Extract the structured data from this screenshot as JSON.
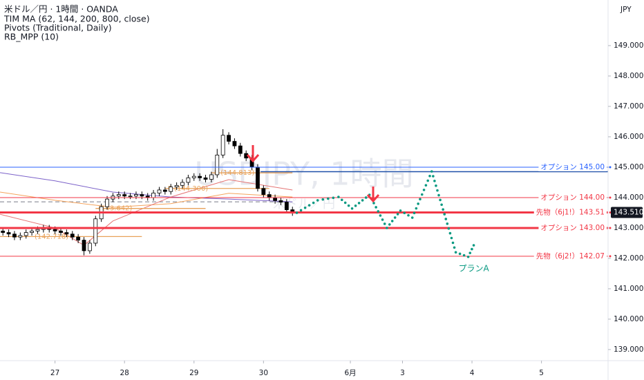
{
  "chart_data": {
    "type": "candlestick",
    "header": [
      "米ドル／円 · 1時間 · OANDA",
      "TIM MA (62, 144, 200, 800, close)",
      "Pivots (Traditional, Daily)",
      "RB_MPP (10)"
    ],
    "currency": "JPY",
    "watermark": "USDJPY, 1時間",
    "watermark_sub": "米ドル／円",
    "xlim": [
      -19,
      191
    ],
    "xticks": [
      {
        "value": 0,
        "label": "27"
      },
      {
        "value": 24,
        "label": "28"
      },
      {
        "value": 48,
        "label": "29"
      },
      {
        "value": 72,
        "label": "30"
      },
      {
        "value": 102,
        "label": "6月"
      },
      {
        "value": 120,
        "label": "3"
      },
      {
        "value": 144,
        "label": "4"
      },
      {
        "value": 168,
        "label": "5"
      }
    ],
    "ylim": [
      138.68,
      150.5
    ],
    "yticks": [
      {
        "value": 139,
        "label": "139.000"
      },
      {
        "value": 140,
        "label": "140.000"
      },
      {
        "value": 141,
        "label": "141.000"
      },
      {
        "value": 142,
        "label": "142.000"
      },
      {
        "value": 143,
        "label": "143.000"
      },
      {
        "value": 144,
        "label": "144.000"
      },
      {
        "value": 145,
        "label": "145.000"
      },
      {
        "value": 146,
        "label": "146.000"
      },
      {
        "value": 147,
        "label": "147.000"
      },
      {
        "value": 148,
        "label": "148.000"
      },
      {
        "value": 149,
        "label": "149.000"
      }
    ],
    "price_label": {
      "value": 143.51,
      "label": "143.510"
    },
    "up_color": "#ffffff",
    "down_color": "#000000",
    "x": [
      -18,
      -16,
      -14,
      -12,
      -10,
      -8,
      -6,
      -4,
      -2,
      0,
      2,
      4,
      6,
      8,
      10,
      12,
      14,
      16,
      18,
      20,
      22,
      24,
      26,
      28,
      30,
      32,
      34,
      36,
      38,
      40,
      42,
      44,
      46,
      48,
      50,
      52,
      54,
      56,
      58,
      60,
      62,
      64,
      66,
      68,
      70,
      72,
      74,
      76,
      78,
      80,
      82
    ],
    "open": [
      142.9,
      142.85,
      142.8,
      142.7,
      142.75,
      142.85,
      142.9,
      142.95,
      143.0,
      142.95,
      142.9,
      142.85,
      142.8,
      142.7,
      142.6,
      142.25,
      142.5,
      143.3,
      143.7,
      143.95,
      144.05,
      144.1,
      144.05,
      144.05,
      144.1,
      144.05,
      144.0,
      144.15,
      144.25,
      144.2,
      144.35,
      144.4,
      144.5,
      144.65,
      144.7,
      144.65,
      144.6,
      144.75,
      145.4,
      146.05,
      145.85,
      145.7,
      145.45,
      145.3,
      145.0,
      144.3,
      144.1,
      144.0,
      143.9,
      143.85,
      143.6
    ],
    "high": [
      143.0,
      142.95,
      142.9,
      142.85,
      142.95,
      143.0,
      143.05,
      143.1,
      143.1,
      143.05,
      143.0,
      142.95,
      142.9,
      142.8,
      142.7,
      142.6,
      143.4,
      143.8,
      144.05,
      144.15,
      144.2,
      144.2,
      144.15,
      144.2,
      144.2,
      144.15,
      144.25,
      144.35,
      144.35,
      144.45,
      144.5,
      144.6,
      144.75,
      144.8,
      144.8,
      144.75,
      144.85,
      145.6,
      146.25,
      146.15,
      145.95,
      145.8,
      145.55,
      145.4,
      145.1,
      144.4,
      144.2,
      144.1,
      144.0,
      143.95,
      143.7
    ],
    "low": [
      142.75,
      142.7,
      142.6,
      142.6,
      142.65,
      142.75,
      142.8,
      142.85,
      142.85,
      142.8,
      142.75,
      142.7,
      142.6,
      142.5,
      142.1,
      142.15,
      142.4,
      143.2,
      143.6,
      143.85,
      143.95,
      143.95,
      143.95,
      143.95,
      143.95,
      143.9,
      143.9,
      144.05,
      144.1,
      144.1,
      144.25,
      144.3,
      144.4,
      144.55,
      144.55,
      144.5,
      144.5,
      144.65,
      145.3,
      145.75,
      145.6,
      145.35,
      145.2,
      144.9,
      144.2,
      144.0,
      143.9,
      143.8,
      143.75,
      143.5,
      143.4
    ],
    "close": [
      142.85,
      142.8,
      142.7,
      142.75,
      142.85,
      142.9,
      142.95,
      143.0,
      142.95,
      142.9,
      142.85,
      142.8,
      142.7,
      142.6,
      142.25,
      142.5,
      143.3,
      143.7,
      143.95,
      144.05,
      144.1,
      144.05,
      144.05,
      144.1,
      144.05,
      144.0,
      144.15,
      144.25,
      144.2,
      144.35,
      144.4,
      144.5,
      144.65,
      144.7,
      144.65,
      144.6,
      144.75,
      145.4,
      146.05,
      145.85,
      145.7,
      145.45,
      145.3,
      145.0,
      144.3,
      144.1,
      144.0,
      143.9,
      143.85,
      143.6,
      143.5
    ],
    "moving_averages": [
      {
        "color": "#7b61c9",
        "x": [
          -19,
          0,
          20,
          40,
          60,
          82
        ],
        "values": [
          144.82,
          144.55,
          144.18,
          144.02,
          143.95,
          143.86
        ]
      },
      {
        "color": "#f5a35c",
        "x": [
          -19,
          0,
          20,
          40,
          60,
          82
        ],
        "values": [
          144.18,
          143.91,
          143.68,
          143.8,
          144.14,
          144.02
        ]
      },
      {
        "color": "#e57373",
        "x": [
          -19,
          0,
          10,
          20,
          40,
          60,
          82
        ],
        "values": [
          143.45,
          143.0,
          142.43,
          143.23,
          144.02,
          144.59,
          144.25
        ]
      }
    ],
    "dashed_line": {
      "value": 143.86,
      "x": [
        -19,
        82
      ],
      "color": "#787b86"
    },
    "pivots": [
      {
        "label": "(142.718)",
        "value": 142.718,
        "x": [
          -19,
          30
        ]
      },
      {
        "label": "(143.642)",
        "value": 143.642,
        "x": [
          14,
          52
        ]
      },
      {
        "label": "P (144.300)",
        "value": 144.3,
        "x": [
          38,
          74
        ]
      },
      {
        "label": "P (144.813)",
        "value": 144.813,
        "x": [
          54,
          82
        ]
      }
    ],
    "pivot_color": "#e8a25a",
    "reference_line": {
      "value": 144.85,
      "x": [
        71,
        191
      ],
      "color": "#1e4fa8"
    },
    "levels": [
      {
        "label": "オプション 145.00",
        "value": 145.0,
        "color": "#2962ff",
        "width": 1
      },
      {
        "label": "オプション 144.00",
        "value": 144.0,
        "color": "#f23645",
        "width": 1
      },
      {
        "label": "先物（6j1!）143.51",
        "value": 143.51,
        "color": "#f23645",
        "width": 3
      },
      {
        "label": "オプション 143.00",
        "value": 143.0,
        "color": "#f23645",
        "width": 3
      },
      {
        "label": "先物（6j2!）142.07",
        "value": 142.07,
        "color": "#f23645",
        "width": 1
      }
    ],
    "plan": {
      "label": "プランA",
      "color": "#089981",
      "x": [
        83.5,
        90.7,
        97.9,
        102.6,
        108.6,
        114.6,
        119.3,
        123.4,
        130.1,
        138.4,
        142.7,
        144.6
      ],
      "values": [
        143.5,
        143.91,
        144.02,
        143.64,
        144.09,
        143.0,
        143.57,
        143.34,
        144.86,
        142.2,
        142.05,
        142.43
      ]
    }
  }
}
